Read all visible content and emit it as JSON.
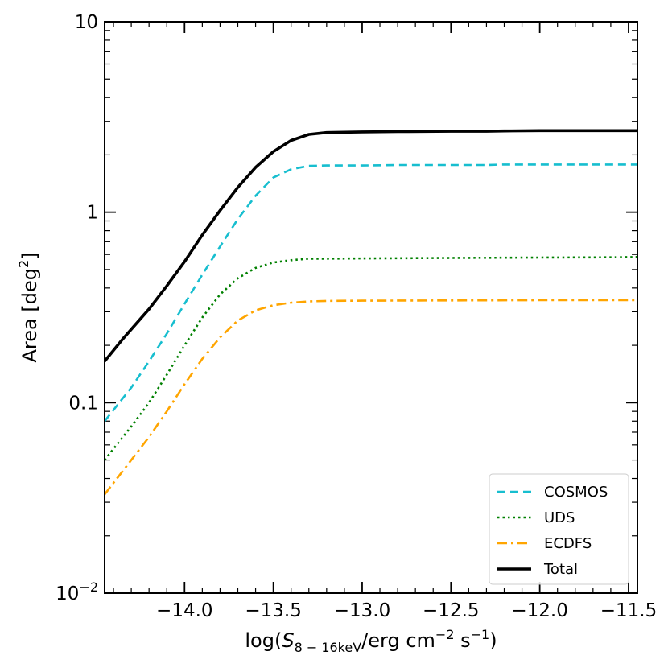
{
  "chart_data": {
    "type": "line",
    "xlabel": {
      "prefix": "log(",
      "symbol": "S",
      "subscript": "8 − 16keV",
      "unit": "/erg cm",
      "exp1": "−2",
      "mid": " s",
      "exp2": "−1",
      "suffix": ")"
    },
    "ylabel": {
      "text": "Area [deg",
      "exp": "2",
      "suffix": "]"
    },
    "xlim": [
      -14.45,
      -11.45
    ],
    "ylim": [
      0.01,
      10
    ],
    "yscale": "log",
    "x_ticks": [
      {
        "value": -14.0,
        "label": "−14.0"
      },
      {
        "value": -13.5,
        "label": "−13.5"
      },
      {
        "value": -13.0,
        "label": "−13.0"
      },
      {
        "value": -12.5,
        "label": "−12.5"
      },
      {
        "value": -12.0,
        "label": "−12.0"
      },
      {
        "value": -11.5,
        "label": "−11.5"
      }
    ],
    "x_minor_step": 0.1,
    "y_ticks": [
      {
        "value": 0.01,
        "base": "10",
        "exp": "−2"
      },
      {
        "value": 0.1,
        "label": "0.1"
      },
      {
        "value": 1,
        "label": "1"
      },
      {
        "value": 10,
        "label": "10"
      }
    ],
    "legend_position": "lower right",
    "series": [
      {
        "name": "COSMOS",
        "color": "#17becf",
        "style": "dashed",
        "x": [
          -14.45,
          -14.3,
          -14.2,
          -14.1,
          -14.0,
          -13.9,
          -13.8,
          -13.7,
          -13.6,
          -13.5,
          -13.4,
          -13.3,
          -13.2,
          -13.0,
          -12.8,
          -12.5,
          -12.3,
          -12.2,
          -12.0,
          -11.8,
          -11.6,
          -11.45
        ],
        "y": [
          0.08,
          0.12,
          0.165,
          0.23,
          0.33,
          0.47,
          0.66,
          0.92,
          1.22,
          1.52,
          1.68,
          1.75,
          1.76,
          1.76,
          1.77,
          1.77,
          1.77,
          1.78,
          1.78,
          1.78,
          1.78,
          1.78
        ]
      },
      {
        "name": "UDS",
        "color": "#008000",
        "style": "dotted",
        "x": [
          -14.45,
          -14.3,
          -14.2,
          -14.1,
          -14.0,
          -13.9,
          -13.8,
          -13.7,
          -13.6,
          -13.5,
          -13.4,
          -13.3,
          -13.2,
          -13.0,
          -12.5,
          -12.0,
          -11.6,
          -11.45
        ],
        "y": [
          0.05,
          0.075,
          0.1,
          0.14,
          0.2,
          0.28,
          0.37,
          0.45,
          0.51,
          0.545,
          0.56,
          0.57,
          0.57,
          0.572,
          0.575,
          0.578,
          0.58,
          0.582
        ]
      },
      {
        "name": "ECDFS",
        "color": "#ffa500",
        "style": "dashdot",
        "x": [
          -14.45,
          -14.3,
          -14.2,
          -14.1,
          -14.0,
          -13.9,
          -13.8,
          -13.7,
          -13.6,
          -13.5,
          -13.4,
          -13.3,
          -13.2,
          -13.0,
          -12.5,
          -12.0,
          -11.45
        ],
        "y": [
          0.033,
          0.05,
          0.066,
          0.09,
          0.125,
          0.17,
          0.22,
          0.27,
          0.305,
          0.325,
          0.335,
          0.34,
          0.342,
          0.343,
          0.344,
          0.345,
          0.345
        ]
      },
      {
        "name": "Total",
        "color": "#000000",
        "style": "solid",
        "x": [
          -14.45,
          -14.35,
          -14.2,
          -14.1,
          -14.0,
          -13.9,
          -13.8,
          -13.7,
          -13.6,
          -13.5,
          -13.4,
          -13.3,
          -13.2,
          -13.0,
          -12.8,
          -12.5,
          -12.3,
          -12.2,
          -12.0,
          -11.8,
          -11.6,
          -11.45
        ],
        "y": [
          0.165,
          0.215,
          0.31,
          0.41,
          0.55,
          0.76,
          1.02,
          1.35,
          1.72,
          2.08,
          2.38,
          2.56,
          2.62,
          2.64,
          2.65,
          2.66,
          2.66,
          2.67,
          2.68,
          2.68,
          2.68,
          2.68
        ]
      }
    ]
  }
}
